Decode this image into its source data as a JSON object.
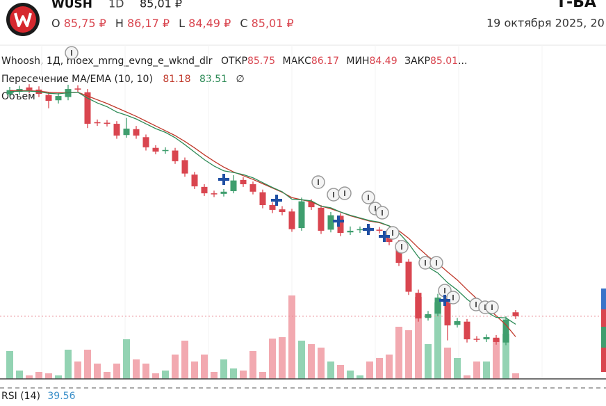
{
  "header": {
    "symbol": "WUSH",
    "interval": "1D",
    "price": "85,01 ₽",
    "ohlc": [
      {
        "label": "O",
        "value": "85,75 ₽"
      },
      {
        "label": "H",
        "value": "86,17 ₽"
      },
      {
        "label": "L",
        "value": "84,49 ₽"
      },
      {
        "label": "C",
        "value": "85,01 ₽"
      }
    ],
    "date": "19 октября 2025, 20",
    "brand": "Т-БА"
  },
  "chart_data": {
    "type": "candlestick",
    "title": "Whoosh, 1Д, moex_mrng_evng_e_wknd_dlr",
    "ohlc_labels": [
      "ОТКР",
      "МАКС",
      "МИН",
      "ЗАКР"
    ],
    "more": "...",
    "up_color": "#3f9e6e",
    "down_color": "#d9454f",
    "open": [
      126.5,
      127.0,
      127.8,
      127.4,
      126.4,
      125.4,
      126.0,
      127.6,
      126.9,
      121.3,
      121.2,
      121.0,
      118.9,
      120.0,
      118.5,
      116.5,
      115.9,
      116.0,
      114.2,
      111.5,
      109.2,
      108.0,
      107.9,
      108.4,
      110.5,
      109.7,
      108.2,
      105.8,
      105.0,
      104.6,
      101.5,
      106.4,
      105.3,
      101.2,
      103.8,
      100.7,
      101.1,
      101.3,
      101.2,
      101.0,
      98.8,
      95.2,
      89.4,
      84.7,
      85.5,
      88.4,
      83.4,
      84.0,
      80.8,
      80.7,
      81.0,
      80.1,
      85.75
    ],
    "high": [
      127.9,
      128.1,
      128.4,
      128.0,
      126.9,
      126.8,
      128.3,
      128.2,
      127.5,
      121.8,
      121.7,
      121.5,
      122.1,
      120.6,
      119.0,
      117.0,
      116.6,
      116.5,
      114.7,
      112.0,
      109.7,
      108.5,
      108.8,
      111.4,
      111.0,
      110.2,
      108.7,
      106.3,
      105.6,
      105.1,
      107.2,
      106.9,
      105.8,
      104.5,
      104.3,
      101.8,
      101.8,
      101.8,
      101.7,
      101.5,
      99.3,
      95.7,
      90.0,
      86.0,
      89.2,
      89.0,
      84.7,
      84.5,
      81.3,
      81.6,
      81.5,
      85.0,
      86.17
    ],
    "low": [
      125.9,
      126.4,
      126.7,
      126.0,
      123.9,
      124.8,
      125.4,
      126.8,
      120.2,
      120.6,
      120.5,
      118.2,
      118.4,
      118.2,
      116.0,
      115.3,
      115.4,
      113.5,
      111.1,
      108.8,
      107.5,
      107.3,
      107.4,
      108.0,
      109.2,
      107.8,
      105.2,
      104.3,
      103.9,
      100.8,
      101.0,
      104.9,
      100.4,
      100.7,
      100.0,
      100.2,
      100.6,
      100.7,
      100.5,
      98.3,
      94.4,
      89.0,
      84.0,
      84.2,
      85.0,
      80.5,
      82.9,
      80.1,
      80.2,
      80.2,
      79.7,
      79.6,
      84.49
    ],
    "close": [
      127.3,
      127.5,
      127.3,
      126.6,
      125.3,
      126.2,
      127.5,
      127.4,
      121.0,
      121.1,
      121.0,
      118.8,
      120.1,
      118.8,
      116.6,
      115.8,
      116.1,
      114.0,
      111.7,
      109.3,
      108.0,
      107.8,
      108.3,
      110.4,
      109.7,
      108.3,
      105.8,
      104.9,
      104.5,
      101.3,
      106.5,
      105.4,
      101.0,
      103.9,
      100.6,
      101.0,
      101.3,
      101.2,
      101.0,
      98.9,
      95.0,
      89.6,
      84.6,
      85.4,
      88.5,
      83.3,
      84.1,
      80.7,
      80.7,
      81.1,
      80.2,
      84.4,
      85.01
    ],
    "ylim": [
      73.3,
      135.7
    ],
    "indicator": {
      "name": "Пересечение MA/EMA (10, 10)",
      "symbol": "∅",
      "lines": [
        {
          "color": "#c0392b",
          "values": [
            127.2,
            127.2,
            127.2,
            127.1,
            126.9,
            126.8,
            126.8,
            126.9,
            126.2,
            125.5,
            124.8,
            124.0,
            123.2,
            122.4,
            121.5,
            120.6,
            119.7,
            118.8,
            117.7,
            116.5,
            115.2,
            114.0,
            112.9,
            112.0,
            111.3,
            110.6,
            109.8,
            109.0,
            108.2,
            107.2,
            106.8,
            106.4,
            105.6,
            105.1,
            104.5,
            103.8,
            103.3,
            102.8,
            102.5,
            101.9,
            101.0,
            99.6,
            97.8,
            96.2,
            94.9,
            93.3,
            91.8,
            90.0,
            88.3,
            86.8,
            85.1,
            83.4,
            81.18
          ]
        },
        {
          "color": "#2e8b57",
          "values": [
            127.0,
            127.1,
            127.1,
            127.0,
            126.7,
            126.6,
            126.8,
            126.9,
            125.8,
            124.9,
            124.2,
            123.2,
            122.6,
            121.9,
            121.0,
            120.1,
            119.4,
            118.4,
            117.1,
            115.7,
            114.3,
            113.1,
            112.2,
            111.9,
            111.5,
            110.9,
            110.0,
            109.1,
            108.3,
            106.9,
            106.8,
            106.6,
            105.6,
            105.3,
            104.5,
            103.9,
            103.4,
            102.9,
            102.6,
            101.9,
            100.6,
            98.6,
            96.1,
            94.2,
            93.1,
            91.3,
            89.9,
            88.2,
            86.8,
            85.8,
            84.8,
            84.7,
            83.51
          ]
        }
      ]
    },
    "volume": {
      "name": "Объем",
      "up_color": "#93d3b3",
      "down_color": "#f2a9b0",
      "vlim": [
        0,
        130
      ],
      "values": [
        40,
        12,
        5,
        10,
        8,
        5,
        42,
        25,
        42,
        22,
        10,
        22,
        57,
        28,
        22,
        8,
        12,
        35,
        55,
        25,
        35,
        10,
        28,
        15,
        12,
        40,
        10,
        58,
        60,
        120,
        55,
        50,
        45,
        25,
        20,
        12,
        5,
        25,
        30,
        35,
        75,
        70,
        118,
        50,
        110,
        45,
        30,
        5,
        25,
        25,
        58,
        65,
        8
      ]
    }
  },
  "rsi": {
    "name": "RSI (14)",
    "value": 39.56
  }
}
